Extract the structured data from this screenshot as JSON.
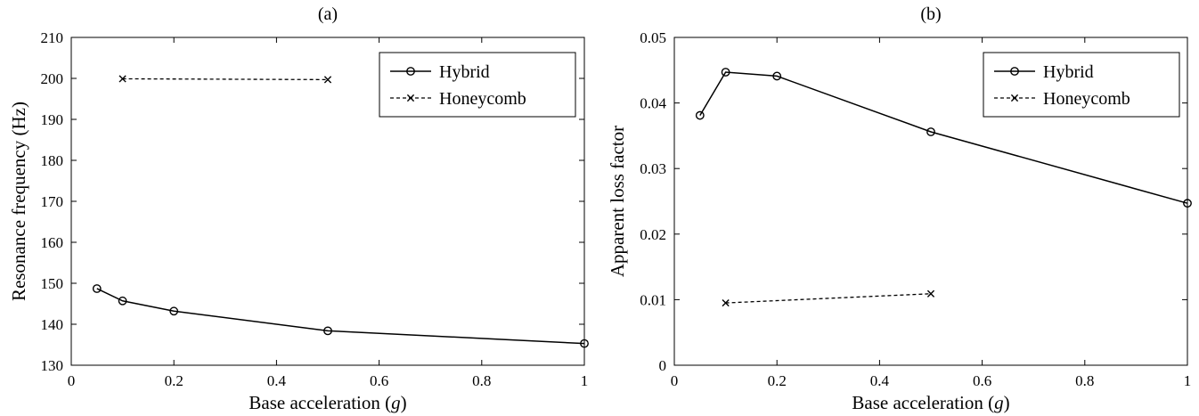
{
  "chart_data": [
    {
      "type": "line",
      "title": "(a)",
      "xlabel": "Base acceleration (",
      "xlabel_italic": "g",
      "xlabel_end": ")",
      "ylabel": "Resonance frequency (Hz)",
      "xlim": [
        0,
        1
      ],
      "ylim": [
        130,
        210
      ],
      "xticks": [
        0,
        0.2,
        0.4,
        0.6,
        0.8,
        1
      ],
      "xtick_labels": [
        "0",
        "0.2",
        "0.4",
        "0.6",
        "0.8",
        "1"
      ],
      "yticks": [
        130,
        140,
        150,
        160,
        170,
        180,
        190,
        200,
        210
      ],
      "ytick_labels": [
        "130",
        "140",
        "150",
        "160",
        "170",
        "180",
        "190",
        "200",
        "210"
      ],
      "legend_position": "top-right",
      "series": [
        {
          "name": "Hybrid",
          "marker": "circle",
          "line": "solid",
          "x": [
            0.05,
            0.1,
            0.2,
            0.5,
            1.0
          ],
          "y": [
            148.7,
            145.7,
            143.2,
            138.4,
            135.3
          ]
        },
        {
          "name": "Honeycomb",
          "marker": "cross",
          "line": "dashed",
          "x": [
            0.1,
            0.5
          ],
          "y": [
            199.9,
            199.7
          ]
        }
      ]
    },
    {
      "type": "line",
      "title": "(b)",
      "xlabel": "Base acceleration (",
      "xlabel_italic": "g",
      "xlabel_end": ")",
      "ylabel": "Apparent loss factor",
      "xlim": [
        0,
        1
      ],
      "ylim": [
        0,
        0.05
      ],
      "xticks": [
        0,
        0.2,
        0.4,
        0.6,
        0.8,
        1
      ],
      "xtick_labels": [
        "0",
        "0.2",
        "0.4",
        "0.6",
        "0.8",
        "1"
      ],
      "yticks": [
        0,
        0.01,
        0.02,
        0.03,
        0.04,
        0.05
      ],
      "ytick_labels": [
        "0",
        "0.01",
        "0.02",
        "0.03",
        "0.04",
        "0.05"
      ],
      "legend_position": "top-right",
      "series": [
        {
          "name": "Hybrid",
          "marker": "circle",
          "line": "solid",
          "x": [
            0.05,
            0.1,
            0.2,
            0.5,
            1.0
          ],
          "y": [
            0.0381,
            0.0447,
            0.0441,
            0.0356,
            0.0247
          ]
        },
        {
          "name": "Honeycomb",
          "marker": "cross",
          "line": "dashed",
          "x": [
            0.1,
            0.5
          ],
          "y": [
            0.0095,
            0.0109
          ]
        }
      ]
    }
  ]
}
